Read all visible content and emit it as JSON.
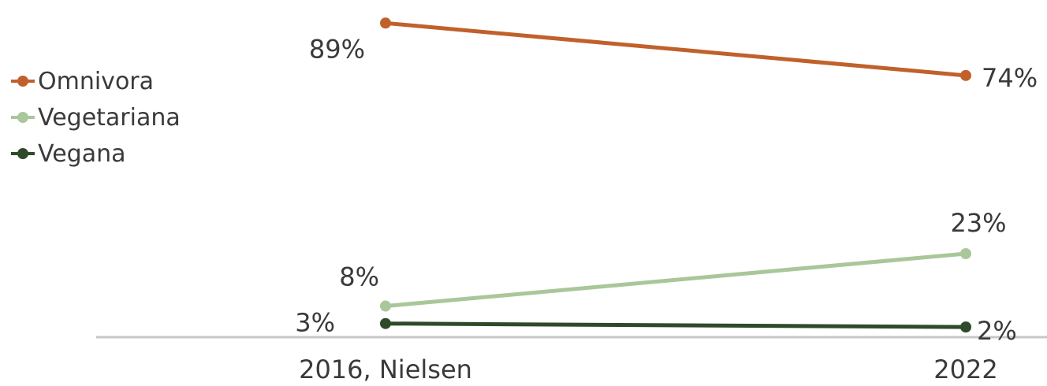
{
  "chart_data": {
    "type": "line",
    "categories": [
      "2016, Nielsen",
      "2022"
    ],
    "series": [
      {
        "name": "Omnivora",
        "values": [
          89,
          74
        ],
        "labels": [
          "89%",
          "74%"
        ],
        "color": "#c0612b"
      },
      {
        "name": "Vegetariana",
        "values": [
          8,
          23
        ],
        "labels": [
          "8%",
          "23%"
        ],
        "color": "#a9c79a"
      },
      {
        "name": "Vegana",
        "values": [
          3,
          2
        ],
        "labels": [
          "3%",
          "2%"
        ],
        "color": "#2f4a2a"
      }
    ],
    "ylim": [
      0,
      92
    ],
    "legend_position": "left",
    "grid": false
  }
}
